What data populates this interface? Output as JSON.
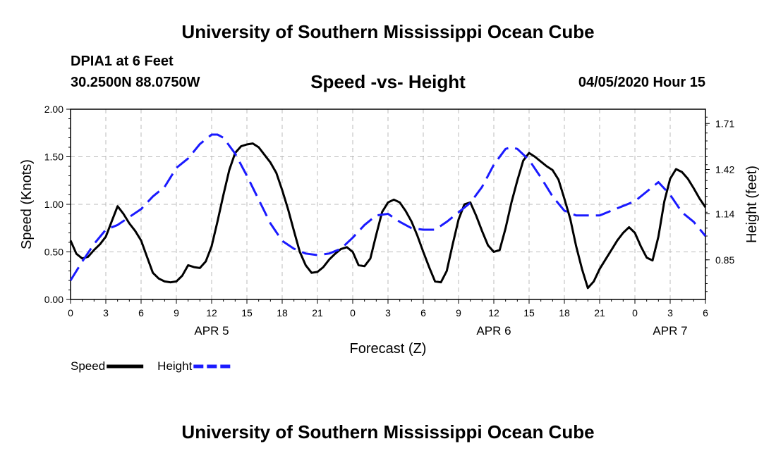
{
  "header": {
    "title": "University of Southern Mississippi Ocean Cube",
    "station": "DPIA1 at 6 Feet",
    "coords": "30.2500N 88.0750W",
    "subtitle": "Speed -vs- Height",
    "datetime": "04/05/2020 Hour 15"
  },
  "footer": {
    "title": "University of Southern Mississippi Ocean Cube"
  },
  "chart_data": {
    "type": "line",
    "xlabel": "Forecast (Z)",
    "ylabel": "Speed (Knots)",
    "y2label": "Height (feet)",
    "x_range_hours": [
      0,
      54
    ],
    "x_tick_labels": [
      "0",
      "3",
      "6",
      "9",
      "12",
      "15",
      "18",
      "21",
      "0",
      "3",
      "6",
      "9",
      "12",
      "15",
      "18",
      "21",
      "0",
      "3",
      "6"
    ],
    "date_labels": [
      {
        "hour": 12,
        "label": "APR 5"
      },
      {
        "hour": 36,
        "label": "APR 6"
      },
      {
        "hour": 51,
        "label": "APR 7"
      }
    ],
    "ylim": [
      0,
      2
    ],
    "y_ticks": [
      0,
      0.5,
      1,
      1.5,
      2
    ],
    "y_tick_labels": [
      "0.00",
      "0.50",
      "1.00",
      "1.50",
      "2.00"
    ],
    "y2lim": [
      0.6,
      1.8
    ],
    "y2_ticks": [
      0.85,
      1.14,
      1.42,
      1.71
    ],
    "y2_tick_labels": [
      "0.85",
      "1.14",
      "1.42",
      "1.71"
    ],
    "grid": true,
    "legend": "bottom-left",
    "series": [
      {
        "name": "Speed",
        "axis": "left",
        "color": "#000000",
        "style": "solid",
        "x": [
          0,
          0.5,
          1,
          1.5,
          2,
          2.5,
          3,
          3.5,
          4,
          4.5,
          5,
          5.5,
          6,
          6.5,
          7,
          7.5,
          8,
          8.5,
          9,
          9.5,
          10,
          10.5,
          11,
          11.5,
          12,
          12.5,
          13,
          13.5,
          14,
          14.5,
          15,
          15.5,
          16,
          16.5,
          17,
          17.5,
          18,
          18.5,
          19,
          19.5,
          20,
          20.5,
          21,
          21.5,
          22,
          22.5,
          23,
          23.5,
          24,
          24.5,
          25,
          25.5,
          26,
          26.5,
          27,
          27.5,
          28,
          28.5,
          29,
          29.5,
          30,
          30.5,
          31,
          31.5,
          32,
          32.5,
          33,
          33.5,
          34,
          34.5,
          35,
          35.5,
          36,
          36.5,
          37,
          37.5,
          38,
          38.5,
          39,
          39.5,
          40,
          40.5,
          41,
          41.5,
          42,
          42.5,
          43,
          43.5,
          44,
          44.5,
          45,
          45.5,
          46,
          46.5,
          47,
          47.5,
          48,
          48.5,
          49,
          49.5,
          50,
          50.5,
          51,
          51.5,
          52,
          52.5,
          53,
          53.5,
          54
        ],
        "values": [
          0.62,
          0.48,
          0.43,
          0.45,
          0.52,
          0.58,
          0.66,
          0.82,
          0.98,
          0.9,
          0.8,
          0.72,
          0.62,
          0.45,
          0.28,
          0.22,
          0.19,
          0.18,
          0.19,
          0.25,
          0.36,
          0.34,
          0.33,
          0.4,
          0.56,
          0.82,
          1.1,
          1.36,
          1.54,
          1.61,
          1.63,
          1.64,
          1.6,
          1.52,
          1.44,
          1.33,
          1.15,
          0.95,
          0.72,
          0.5,
          0.36,
          0.28,
          0.29,
          0.34,
          0.42,
          0.48,
          0.53,
          0.55,
          0.5,
          0.36,
          0.35,
          0.43,
          0.68,
          0.92,
          1.02,
          1.05,
          1.02,
          0.93,
          0.82,
          0.67,
          0.5,
          0.34,
          0.19,
          0.18,
          0.3,
          0.58,
          0.84,
          1.0,
          1.02,
          0.88,
          0.72,
          0.57,
          0.5,
          0.52,
          0.75,
          1.02,
          1.25,
          1.46,
          1.54,
          1.5,
          1.45,
          1.4,
          1.36,
          1.26,
          1.06,
          0.85,
          0.56,
          0.32,
          0.12,
          0.19,
          0.32,
          0.42,
          0.52,
          0.62,
          0.7,
          0.76,
          0.7,
          0.56,
          0.44,
          0.41,
          0.66,
          1.03,
          1.27,
          1.37,
          1.34,
          1.27,
          1.17,
          1.06,
          0.97
        ]
      },
      {
        "name": "Height",
        "axis": "right",
        "color": "#1a1aff",
        "style": "dashed",
        "x": [
          0,
          1,
          2,
          3,
          4,
          5,
          6,
          7,
          8,
          9,
          10,
          11,
          12,
          12.5,
          13,
          14,
          15,
          16,
          17,
          18,
          19,
          20,
          21,
          22,
          23,
          24,
          25,
          26,
          27,
          28,
          29,
          30,
          31,
          32,
          33,
          34,
          35,
          36,
          37,
          37.5,
          38,
          39,
          40,
          41,
          42,
          43,
          44,
          45,
          46,
          47,
          48,
          49,
          50,
          51,
          52,
          53,
          54
        ],
        "values": [
          0.72,
          0.84,
          0.95,
          1.04,
          1.07,
          1.12,
          1.17,
          1.25,
          1.31,
          1.43,
          1.49,
          1.58,
          1.64,
          1.64,
          1.62,
          1.52,
          1.38,
          1.23,
          1.08,
          0.97,
          0.92,
          0.89,
          0.88,
          0.89,
          0.92,
          0.99,
          1.07,
          1.13,
          1.14,
          1.09,
          1.05,
          1.04,
          1.04,
          1.09,
          1.15,
          1.21,
          1.31,
          1.45,
          1.55,
          1.56,
          1.55,
          1.48,
          1.37,
          1.25,
          1.16,
          1.13,
          1.13,
          1.13,
          1.16,
          1.19,
          1.22,
          1.28,
          1.34,
          1.26,
          1.15,
          1.09,
          1.0
        ]
      }
    ]
  }
}
